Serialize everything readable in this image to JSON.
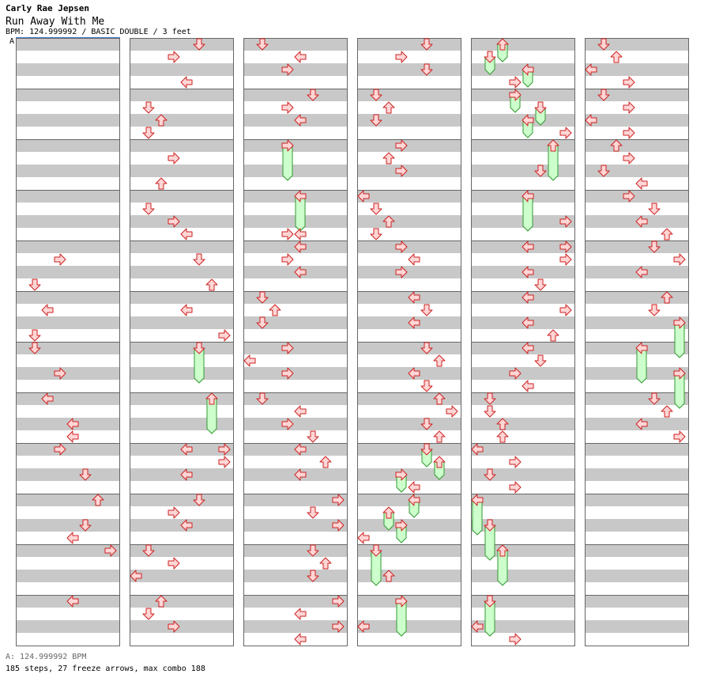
{
  "header": {
    "artist": "Carly Rae Jepsen",
    "title": "Run Away With Me",
    "meta": "BPM: 124.999992 / BASIC DOUBLE / 3 feet",
    "section_marker": "A"
  },
  "footer": {
    "bpm": "A: 124.999992 BPM",
    "stats": "185 steps, 27 freeze arrows, max combo 188"
  },
  "colors": {
    "stripe": "#c8c8c8",
    "measure_border": "#666666",
    "arrow_fill": "#ffd6d6",
    "arrow_stroke": "#cc2222",
    "freeze_fill": "#ccffcc",
    "freeze_stroke": "#339933",
    "bpm_line": "#4477cc"
  },
  "chart_layout": {
    "columns": 6,
    "measures_per_column": 12,
    "lanes": 8
  },
  "steps": [
    {
      "col": 0,
      "m": 4,
      "b": 1,
      "lane": 3,
      "dir": "right"
    },
    {
      "col": 0,
      "m": 4,
      "b": 3,
      "lane": 1,
      "dir": "down"
    },
    {
      "col": 0,
      "m": 5,
      "b": 1,
      "lane": 2,
      "dir": "left"
    },
    {
      "col": 0,
      "m": 5,
      "b": 3,
      "lane": 1,
      "dir": "down"
    },
    {
      "col": 0,
      "m": 6,
      "b": 0,
      "lane": 1,
      "dir": "down"
    },
    {
      "col": 0,
      "m": 6,
      "b": 2,
      "lane": 3,
      "dir": "right"
    },
    {
      "col": 0,
      "m": 7,
      "b": 0,
      "lane": 2,
      "dir": "left"
    },
    {
      "col": 0,
      "m": 7,
      "b": 2,
      "lane": 4,
      "dir": "left"
    },
    {
      "col": 0,
      "m": 7,
      "b": 3,
      "lane": 4,
      "dir": "left"
    },
    {
      "col": 0,
      "m": 8,
      "b": 0,
      "lane": 3,
      "dir": "right"
    },
    {
      "col": 0,
      "m": 8,
      "b": 2,
      "lane": 5,
      "dir": "down"
    },
    {
      "col": 0,
      "m": 9,
      "b": 0,
      "lane": 6,
      "dir": "up"
    },
    {
      "col": 0,
      "m": 9,
      "b": 2,
      "lane": 5,
      "dir": "down"
    },
    {
      "col": 0,
      "m": 9,
      "b": 3,
      "lane": 4,
      "dir": "left"
    },
    {
      "col": 0,
      "m": 10,
      "b": 0,
      "lane": 7,
      "dir": "right"
    },
    {
      "col": 0,
      "m": 11,
      "b": 0,
      "lane": 4,
      "dir": "left"
    },
    {
      "col": 1,
      "m": 0,
      "b": 0,
      "lane": 5,
      "dir": "down"
    },
    {
      "col": 1,
      "m": 0,
      "b": 1,
      "lane": 3,
      "dir": "right"
    },
    {
      "col": 1,
      "m": 0,
      "b": 3,
      "lane": 4,
      "dir": "left"
    },
    {
      "col": 1,
      "m": 1,
      "b": 1,
      "lane": 1,
      "dir": "down"
    },
    {
      "col": 1,
      "m": 1,
      "b": 2,
      "lane": 2,
      "dir": "up"
    },
    {
      "col": 1,
      "m": 1,
      "b": 3,
      "lane": 1,
      "dir": "down"
    },
    {
      "col": 1,
      "m": 2,
      "b": 1,
      "lane": 3,
      "dir": "right"
    },
    {
      "col": 1,
      "m": 2,
      "b": 3,
      "lane": 2,
      "dir": "up"
    },
    {
      "col": 1,
      "m": 3,
      "b": 1,
      "lane": 1,
      "dir": "down"
    },
    {
      "col": 1,
      "m": 3,
      "b": 2,
      "lane": 3,
      "dir": "right"
    },
    {
      "col": 1,
      "m": 3,
      "b": 3,
      "lane": 4,
      "dir": "left"
    },
    {
      "col": 1,
      "m": 4,
      "b": 1,
      "lane": 5,
      "dir": "down"
    },
    {
      "col": 1,
      "m": 4,
      "b": 3,
      "lane": 6,
      "dir": "up"
    },
    {
      "col": 1,
      "m": 5,
      "b": 1,
      "lane": 4,
      "dir": "left"
    },
    {
      "col": 1,
      "m": 5,
      "b": 3,
      "lane": 7,
      "dir": "right"
    },
    {
      "col": 1,
      "m": 6,
      "b": 0,
      "lane": 5,
      "dir": "down",
      "len": 2.5
    },
    {
      "col": 1,
      "m": 7,
      "b": 0,
      "lane": 6,
      "dir": "up",
      "len": 2.5
    },
    {
      "col": 1,
      "m": 8,
      "b": 0,
      "lane": 4,
      "dir": "left"
    },
    {
      "col": 1,
      "m": 8,
      "b": 0,
      "lane": 7,
      "dir": "right"
    },
    {
      "col": 1,
      "m": 8,
      "b": 1,
      "lane": 7,
      "dir": "right"
    },
    {
      "col": 1,
      "m": 8,
      "b": 2,
      "lane": 4,
      "dir": "left"
    },
    {
      "col": 1,
      "m": 9,
      "b": 0,
      "lane": 5,
      "dir": "down"
    },
    {
      "col": 1,
      "m": 9,
      "b": 1,
      "lane": 3,
      "dir": "right"
    },
    {
      "col": 1,
      "m": 9,
      "b": 2,
      "lane": 4,
      "dir": "left"
    },
    {
      "col": 1,
      "m": 10,
      "b": 0,
      "lane": 1,
      "dir": "down"
    },
    {
      "col": 1,
      "m": 10,
      "b": 1,
      "lane": 3,
      "dir": "right"
    },
    {
      "col": 1,
      "m": 10,
      "b": 2,
      "lane": 0,
      "dir": "left"
    },
    {
      "col": 1,
      "m": 11,
      "b": 0,
      "lane": 2,
      "dir": "up"
    },
    {
      "col": 1,
      "m": 11,
      "b": 1,
      "lane": 1,
      "dir": "down"
    },
    {
      "col": 1,
      "m": 11,
      "b": 2,
      "lane": 3,
      "dir": "right"
    },
    {
      "col": 2,
      "m": 0,
      "b": 0,
      "lane": 1,
      "dir": "down"
    },
    {
      "col": 2,
      "m": 0,
      "b": 1,
      "lane": 4,
      "dir": "left"
    },
    {
      "col": 2,
      "m": 0,
      "b": 2,
      "lane": 3,
      "dir": "right"
    },
    {
      "col": 2,
      "m": 1,
      "b": 0,
      "lane": 5,
      "dir": "down"
    },
    {
      "col": 2,
      "m": 1,
      "b": 1,
      "lane": 3,
      "dir": "right"
    },
    {
      "col": 2,
      "m": 1,
      "b": 2,
      "lane": 4,
      "dir": "left"
    },
    {
      "col": 2,
      "m": 2,
      "b": 0,
      "lane": 3,
      "dir": "right",
      "len": 2.5
    },
    {
      "col": 2,
      "m": 3,
      "b": 0,
      "lane": 4,
      "dir": "left",
      "len": 2.5
    },
    {
      "col": 2,
      "m": 3,
      "b": 3,
      "lane": 3,
      "dir": "right"
    },
    {
      "col": 2,
      "m": 3,
      "b": 3,
      "lane": 4,
      "dir": "left"
    },
    {
      "col": 2,
      "m": 4,
      "b": 0,
      "lane": 4,
      "dir": "left"
    },
    {
      "col": 2,
      "m": 4,
      "b": 1,
      "lane": 3,
      "dir": "right"
    },
    {
      "col": 2,
      "m": 4,
      "b": 2,
      "lane": 4,
      "dir": "left"
    },
    {
      "col": 2,
      "m": 5,
      "b": 0,
      "lane": 1,
      "dir": "down"
    },
    {
      "col": 2,
      "m": 5,
      "b": 1,
      "lane": 2,
      "dir": "up"
    },
    {
      "col": 2,
      "m": 5,
      "b": 2,
      "lane": 1,
      "dir": "down"
    },
    {
      "col": 2,
      "m": 6,
      "b": 0,
      "lane": 3,
      "dir": "right"
    },
    {
      "col": 2,
      "m": 6,
      "b": 1,
      "lane": 0,
      "dir": "left"
    },
    {
      "col": 2,
      "m": 6,
      "b": 2,
      "lane": 3,
      "dir": "right"
    },
    {
      "col": 2,
      "m": 7,
      "b": 0,
      "lane": 1,
      "dir": "down"
    },
    {
      "col": 2,
      "m": 7,
      "b": 1,
      "lane": 4,
      "dir": "left"
    },
    {
      "col": 2,
      "m": 7,
      "b": 2,
      "lane": 3,
      "dir": "right"
    },
    {
      "col": 2,
      "m": 7,
      "b": 3,
      "lane": 5,
      "dir": "down"
    },
    {
      "col": 2,
      "m": 8,
      "b": 0,
      "lane": 4,
      "dir": "left"
    },
    {
      "col": 2,
      "m": 8,
      "b": 1,
      "lane": 6,
      "dir": "up"
    },
    {
      "col": 2,
      "m": 8,
      "b": 2,
      "lane": 4,
      "dir": "left"
    },
    {
      "col": 2,
      "m": 9,
      "b": 0,
      "lane": 7,
      "dir": "right"
    },
    {
      "col": 2,
      "m": 9,
      "b": 1,
      "lane": 5,
      "dir": "down"
    },
    {
      "col": 2,
      "m": 9,
      "b": 2,
      "lane": 7,
      "dir": "right"
    },
    {
      "col": 2,
      "m": 10,
      "b": 0,
      "lane": 5,
      "dir": "down"
    },
    {
      "col": 2,
      "m": 10,
      "b": 1,
      "lane": 6,
      "dir": "up"
    },
    {
      "col": 2,
      "m": 10,
      "b": 2,
      "lane": 5,
      "dir": "down"
    },
    {
      "col": 2,
      "m": 11,
      "b": 0,
      "lane": 7,
      "dir": "right"
    },
    {
      "col": 2,
      "m": 11,
      "b": 1,
      "lane": 4,
      "dir": "left"
    },
    {
      "col": 2,
      "m": 11,
      "b": 2,
      "lane": 7,
      "dir": "right"
    },
    {
      "col": 2,
      "m": 11,
      "b": 3,
      "lane": 4,
      "dir": "left"
    },
    {
      "col": 3,
      "m": 0,
      "b": 0,
      "lane": 5,
      "dir": "down"
    },
    {
      "col": 3,
      "m": 0,
      "b": 1,
      "lane": 3,
      "dir": "right"
    },
    {
      "col": 3,
      "m": 0,
      "b": 2,
      "lane": 5,
      "dir": "down"
    },
    {
      "col": 3,
      "m": 1,
      "b": 0,
      "lane": 1,
      "dir": "down"
    },
    {
      "col": 3,
      "m": 1,
      "b": 1,
      "lane": 2,
      "dir": "up"
    },
    {
      "col": 3,
      "m": 1,
      "b": 2,
      "lane": 1,
      "dir": "down"
    },
    {
      "col": 3,
      "m": 2,
      "b": 0,
      "lane": 3,
      "dir": "right"
    },
    {
      "col": 3,
      "m": 2,
      "b": 1,
      "lane": 2,
      "dir": "up"
    },
    {
      "col": 3,
      "m": 2,
      "b": 2,
      "lane": 3,
      "dir": "right"
    },
    {
      "col": 3,
      "m": 3,
      "b": 0,
      "lane": 0,
      "dir": "left"
    },
    {
      "col": 3,
      "m": 3,
      "b": 1,
      "lane": 1,
      "dir": "down"
    },
    {
      "col": 3,
      "m": 3,
      "b": 2,
      "lane": 2,
      "dir": "up"
    },
    {
      "col": 3,
      "m": 3,
      "b": 3,
      "lane": 1,
      "dir": "down"
    },
    {
      "col": 3,
      "m": 4,
      "b": 0,
      "lane": 3,
      "dir": "right"
    },
    {
      "col": 3,
      "m": 4,
      "b": 1,
      "lane": 4,
      "dir": "left"
    },
    {
      "col": 3,
      "m": 4,
      "b": 2,
      "lane": 3,
      "dir": "right"
    },
    {
      "col": 3,
      "m": 5,
      "b": 0,
      "lane": 4,
      "dir": "left"
    },
    {
      "col": 3,
      "m": 5,
      "b": 1,
      "lane": 5,
      "dir": "down"
    },
    {
      "col": 3,
      "m": 5,
      "b": 2,
      "lane": 4,
      "dir": "left"
    },
    {
      "col": 3,
      "m": 6,
      "b": 0,
      "lane": 5,
      "dir": "down"
    },
    {
      "col": 3,
      "m": 6,
      "b": 1,
      "lane": 6,
      "dir": "up"
    },
    {
      "col": 3,
      "m": 6,
      "b": 2,
      "lane": 4,
      "dir": "left"
    },
    {
      "col": 3,
      "m": 6,
      "b": 3,
      "lane": 5,
      "dir": "down"
    },
    {
      "col": 3,
      "m": 7,
      "b": 0,
      "lane": 6,
      "dir": "up"
    },
    {
      "col": 3,
      "m": 7,
      "b": 1,
      "lane": 7,
      "dir": "right"
    },
    {
      "col": 3,
      "m": 7,
      "b": 2,
      "lane": 5,
      "dir": "down"
    },
    {
      "col": 3,
      "m": 7,
      "b": 3,
      "lane": 6,
      "dir": "up"
    },
    {
      "col": 3,
      "m": 8,
      "b": 0,
      "lane": 5,
      "dir": "down",
      "len": 1.25
    },
    {
      "col": 3,
      "m": 8,
      "b": 1,
      "lane": 6,
      "dir": "up",
      "len": 1.25
    },
    {
      "col": 3,
      "m": 8,
      "b": 2,
      "lane": 3,
      "dir": "right",
      "len": 1.25
    },
    {
      "col": 3,
      "m": 8,
      "b": 3,
      "lane": 4,
      "dir": "left"
    },
    {
      "col": 3,
      "m": 9,
      "b": 0,
      "lane": 4,
      "dir": "left",
      "len": 1.25
    },
    {
      "col": 3,
      "m": 9,
      "b": 1,
      "lane": 2,
      "dir": "up",
      "len": 1.25
    },
    {
      "col": 3,
      "m": 9,
      "b": 2,
      "lane": 3,
      "dir": "right",
      "len": 1.25
    },
    {
      "col": 3,
      "m": 9,
      "b": 3,
      "lane": 0,
      "dir": "left"
    },
    {
      "col": 3,
      "m": 10,
      "b": 0,
      "lane": 1,
      "dir": "down",
      "len": 2.5
    },
    {
      "col": 3,
      "m": 10,
      "b": 2,
      "lane": 2,
      "dir": "up"
    },
    {
      "col": 3,
      "m": 11,
      "b": 0,
      "lane": 3,
      "dir": "right",
      "len": 2.5
    },
    {
      "col": 3,
      "m": 11,
      "b": 2,
      "lane": 0,
      "dir": "left"
    },
    {
      "col": 4,
      "m": 0,
      "b": 0,
      "lane": 2,
      "dir": "up",
      "len": 1.25
    },
    {
      "col": 4,
      "m": 0,
      "b": 1,
      "lane": 1,
      "dir": "down",
      "len": 1.25
    },
    {
      "col": 4,
      "m": 0,
      "b": 2,
      "lane": 4,
      "dir": "left",
      "len": 1.25
    },
    {
      "col": 4,
      "m": 0,
      "b": 3,
      "lane": 3,
      "dir": "right"
    },
    {
      "col": 4,
      "m": 1,
      "b": 0,
      "lane": 3,
      "dir": "right",
      "len": 1.25
    },
    {
      "col": 4,
      "m": 1,
      "b": 1,
      "lane": 5,
      "dir": "down",
      "len": 1.25
    },
    {
      "col": 4,
      "m": 1,
      "b": 2,
      "lane": 4,
      "dir": "left",
      "len": 1.25
    },
    {
      "col": 4,
      "m": 1,
      "b": 3,
      "lane": 7,
      "dir": "right"
    },
    {
      "col": 4,
      "m": 2,
      "b": 0,
      "lane": 6,
      "dir": "up",
      "len": 2.5
    },
    {
      "col": 4,
      "m": 2,
      "b": 2,
      "lane": 5,
      "dir": "down"
    },
    {
      "col": 4,
      "m": 3,
      "b": 0,
      "lane": 4,
      "dir": "left",
      "len": 2.5
    },
    {
      "col": 4,
      "m": 3,
      "b": 2,
      "lane": 7,
      "dir": "right"
    },
    {
      "col": 4,
      "m": 4,
      "b": 0,
      "lane": 4,
      "dir": "left"
    },
    {
      "col": 4,
      "m": 4,
      "b": 0,
      "lane": 7,
      "dir": "right"
    },
    {
      "col": 4,
      "m": 4,
      "b": 1,
      "lane": 7,
      "dir": "right"
    },
    {
      "col": 4,
      "m": 4,
      "b": 2,
      "lane": 4,
      "dir": "left"
    },
    {
      "col": 4,
      "m": 4,
      "b": 3,
      "lane": 5,
      "dir": "down"
    },
    {
      "col": 4,
      "m": 5,
      "b": 0,
      "lane": 4,
      "dir": "left"
    },
    {
      "col": 4,
      "m": 5,
      "b": 1,
      "lane": 7,
      "dir": "right"
    },
    {
      "col": 4,
      "m": 5,
      "b": 2,
      "lane": 4,
      "dir": "left"
    },
    {
      "col": 4,
      "m": 5,
      "b": 3,
      "lane": 6,
      "dir": "up"
    },
    {
      "col": 4,
      "m": 6,
      "b": 0,
      "lane": 4,
      "dir": "left"
    },
    {
      "col": 4,
      "m": 6,
      "b": 1,
      "lane": 5,
      "dir": "down"
    },
    {
      "col": 4,
      "m": 6,
      "b": 2,
      "lane": 3,
      "dir": "right"
    },
    {
      "col": 4,
      "m": 6,
      "b": 3,
      "lane": 4,
      "dir": "left"
    },
    {
      "col": 4,
      "m": 7,
      "b": 0,
      "lane": 1,
      "dir": "down"
    },
    {
      "col": 4,
      "m": 7,
      "b": 1,
      "lane": 1,
      "dir": "down"
    },
    {
      "col": 4,
      "m": 7,
      "b": 2,
      "lane": 2,
      "dir": "up"
    },
    {
      "col": 4,
      "m": 7,
      "b": 3,
      "lane": 2,
      "dir": "up"
    },
    {
      "col": 4,
      "m": 8,
      "b": 0,
      "lane": 0,
      "dir": "left"
    },
    {
      "col": 4,
      "m": 8,
      "b": 1,
      "lane": 3,
      "dir": "right"
    },
    {
      "col": 4,
      "m": 8,
      "b": 2,
      "lane": 1,
      "dir": "down"
    },
    {
      "col": 4,
      "m": 8,
      "b": 3,
      "lane": 3,
      "dir": "right"
    },
    {
      "col": 4,
      "m": 9,
      "b": 0,
      "lane": 0,
      "dir": "left",
      "len": 2.5
    },
    {
      "col": 4,
      "m": 9,
      "b": 2,
      "lane": 1,
      "dir": "down",
      "len": 2.5
    },
    {
      "col": 4,
      "m": 10,
      "b": 0,
      "lane": 2,
      "dir": "up",
      "len": 2.5
    },
    {
      "col": 4,
      "m": 11,
      "b": 0,
      "lane": 1,
      "dir": "down",
      "len": 2.5
    },
    {
      "col": 4,
      "m": 11,
      "b": 2,
      "lane": 0,
      "dir": "left"
    },
    {
      "col": 4,
      "m": 11,
      "b": 3,
      "lane": 3,
      "dir": "right"
    },
    {
      "col": 5,
      "m": 0,
      "b": 0,
      "lane": 1,
      "dir": "down"
    },
    {
      "col": 5,
      "m": 0,
      "b": 1,
      "lane": 2,
      "dir": "up"
    },
    {
      "col": 5,
      "m": 0,
      "b": 2,
      "lane": 0,
      "dir": "left"
    },
    {
      "col": 5,
      "m": 0,
      "b": 3,
      "lane": 3,
      "dir": "right"
    },
    {
      "col": 5,
      "m": 1,
      "b": 0,
      "lane": 1,
      "dir": "down"
    },
    {
      "col": 5,
      "m": 1,
      "b": 1,
      "lane": 3,
      "dir": "right"
    },
    {
      "col": 5,
      "m": 1,
      "b": 2,
      "lane": 0,
      "dir": "left"
    },
    {
      "col": 5,
      "m": 1,
      "b": 3,
      "lane": 3,
      "dir": "right"
    },
    {
      "col": 5,
      "m": 2,
      "b": 0,
      "lane": 2,
      "dir": "up"
    },
    {
      "col": 5,
      "m": 2,
      "b": 1,
      "lane": 3,
      "dir": "right"
    },
    {
      "col": 5,
      "m": 2,
      "b": 2,
      "lane": 1,
      "dir": "down"
    },
    {
      "col": 5,
      "m": 2,
      "b": 3,
      "lane": 4,
      "dir": "left"
    },
    {
      "col": 5,
      "m": 3,
      "b": 0,
      "lane": 3,
      "dir": "right"
    },
    {
      "col": 5,
      "m": 3,
      "b": 1,
      "lane": 5,
      "dir": "down"
    },
    {
      "col": 5,
      "m": 3,
      "b": 2,
      "lane": 4,
      "dir": "left"
    },
    {
      "col": 5,
      "m": 3,
      "b": 3,
      "lane": 6,
      "dir": "up"
    },
    {
      "col": 5,
      "m": 4,
      "b": 0,
      "lane": 5,
      "dir": "down"
    },
    {
      "col": 5,
      "m": 4,
      "b": 1,
      "lane": 7,
      "dir": "right"
    },
    {
      "col": 5,
      "m": 4,
      "b": 2,
      "lane": 4,
      "dir": "left"
    },
    {
      "col": 5,
      "m": 5,
      "b": 0,
      "lane": 6,
      "dir": "up"
    },
    {
      "col": 5,
      "m": 5,
      "b": 1,
      "lane": 5,
      "dir": "down"
    },
    {
      "col": 5,
      "m": 5,
      "b": 2,
      "lane": 7,
      "dir": "right",
      "len": 2.5
    },
    {
      "col": 5,
      "m": 6,
      "b": 0,
      "lane": 4,
      "dir": "left",
      "len": 2.5
    },
    {
      "col": 5,
      "m": 6,
      "b": 2,
      "lane": 7,
      "dir": "right",
      "len": 2.5
    },
    {
      "col": 5,
      "m": 7,
      "b": 0,
      "lane": 5,
      "dir": "down"
    },
    {
      "col": 5,
      "m": 7,
      "b": 1,
      "lane": 6,
      "dir": "up"
    },
    {
      "col": 5,
      "m": 7,
      "b": 2,
      "lane": 4,
      "dir": "left"
    },
    {
      "col": 5,
      "m": 7,
      "b": 3,
      "lane": 7,
      "dir": "right"
    }
  ]
}
